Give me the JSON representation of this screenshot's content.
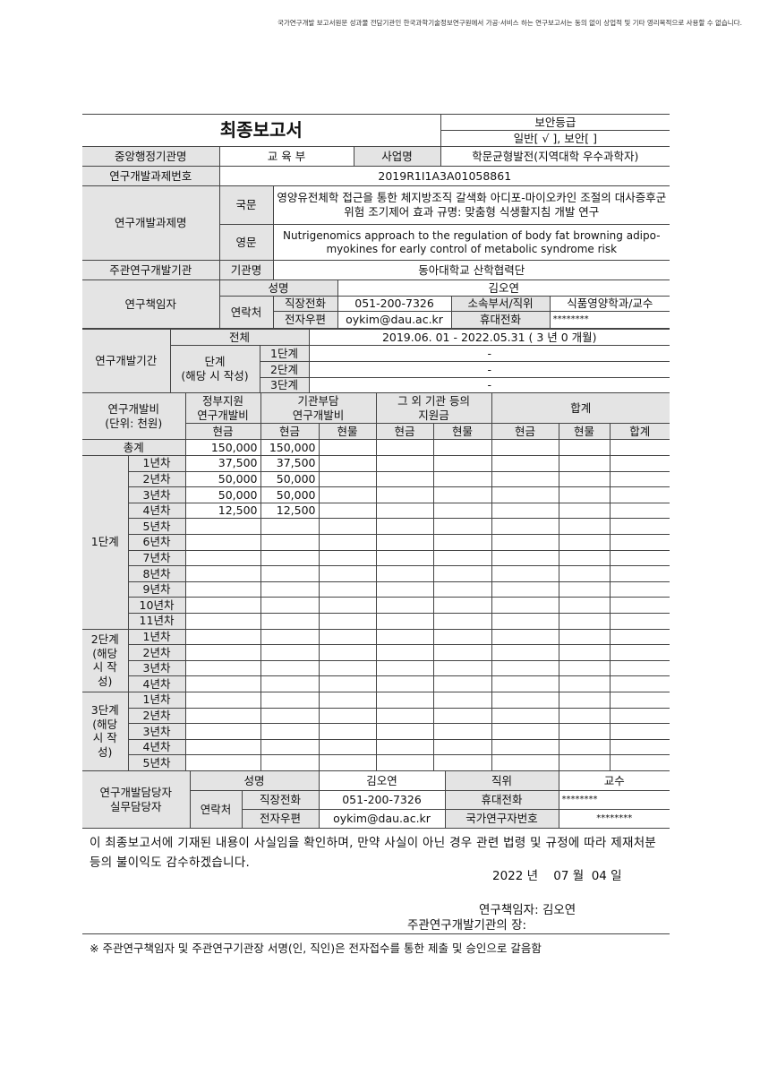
{
  "notice": "국가연구개발 보고서원문 성과물 전담기관인 한국과학기술정보연구원에서 가공·서비스 하는 연구보고서는 동의 없이 상업적 및 기타 영리목적으로 사용할 수 없습니다.",
  "title": "최종보고서",
  "security": {
    "label": "보안등급",
    "value": "일반[ √ ], 보안[    ]"
  },
  "agency": {
    "label": "중앙행정기관명",
    "value": "교 육 부"
  },
  "program": {
    "label": "사업명",
    "value": "학문균형발전(지역대학 우수과학자)"
  },
  "project_no": {
    "label": "연구개발과제번호",
    "value": "2019R1I1A3A01058861"
  },
  "project_title": {
    "label": "연구개발과제명",
    "ko_label": "국문",
    "ko": "영양유전체학 접근을 통한 체지방조직 갈색화 아디포-마이오카인 조절의 대사증후군 위험 조기제어 효과 규명: 맞춤형 식생활지침 개발 연구",
    "en_label": "영문",
    "en": "Nutrigenomics approach to the regulation of body fat browning adipo-myokines  for early control of metabolic syndrome risk"
  },
  "lead_org": {
    "label": "주관연구개발기관",
    "name_label": "기관명",
    "value": "동아대학교 산학협력단"
  },
  "pi": {
    "label": "연구책임자",
    "name_label": "성명",
    "name": "김오연",
    "contact_label": "연락처",
    "work_phone_label": "직장전화",
    "work_phone": "051-200-7326",
    "dept_label": "소속부서/직위",
    "dept": "식품영양학과/교수",
    "email_label": "전자우편",
    "email": "oykim@dau.ac.kr",
    "mobile_label": "휴대전화",
    "mobile": "********"
  },
  "period": {
    "label": "연구개발기간",
    "total_label": "전체",
    "total": "2019.06. 01 - 2022.05.31 ( 3 년  0 개월)",
    "stage_label": "단계",
    "stage_sub": "(해당 시 작성)",
    "stages": [
      {
        "label": "1단계",
        "value": "-"
      },
      {
        "label": "2단계",
        "value": "-"
      },
      {
        "label": "3단계",
        "value": "-"
      }
    ]
  },
  "funding": {
    "label": "연구개발비",
    "unit": "(단위: 천원)",
    "gov": "정부지원\n연구개발비",
    "org": "기관부담\n연구개발비",
    "other": "그 외 기관 등의\n지원금",
    "sum": "합계",
    "cash": "현금",
    "inkind": "현물",
    "total_col": "합계",
    "total_row": {
      "label": "총계",
      "gov_cash": "150,000",
      "org_cash": "150,000"
    },
    "stages": [
      {
        "label": "1단계",
        "years": [
          {
            "label": "1년차",
            "gov_cash": "37,500",
            "org_cash": "37,500"
          },
          {
            "label": "2년차",
            "gov_cash": "50,000",
            "org_cash": "50,000"
          },
          {
            "label": "3년차",
            "gov_cash": "50,000",
            "org_cash": "50,000"
          },
          {
            "label": "4년차",
            "gov_cash": "12,500",
            "org_cash": "12,500"
          },
          {
            "label": "5년차"
          },
          {
            "label": "6년차"
          },
          {
            "label": "7년차"
          },
          {
            "label": "8년차"
          },
          {
            "label": "9년차"
          },
          {
            "label": "10년차"
          },
          {
            "label": "11년차"
          }
        ]
      },
      {
        "label": "2단계\n(해당\n시 작\n성)",
        "years": [
          {
            "label": "1년차"
          },
          {
            "label": "2년차"
          },
          {
            "label": "3년차"
          },
          {
            "label": "4년차"
          }
        ]
      },
      {
        "label": "3단계\n(해당\n시 작\n성)",
        "years": [
          {
            "label": "1년차"
          },
          {
            "label": "2년차"
          },
          {
            "label": "3년차"
          },
          {
            "label": "4년차"
          },
          {
            "label": "5년차"
          }
        ]
      }
    ]
  },
  "staff": {
    "label": "연구개발담당자\n실무담당자",
    "name_label": "성명",
    "name": "김오연",
    "position_label": "직위",
    "position": "교수",
    "contact_label": "연락처",
    "work_phone_label": "직장전화",
    "work_phone": "051-200-7326",
    "mobile_label": "휴대전화",
    "mobile": "********",
    "email_label": "전자우편",
    "email": "oykim@dau.ac.kr",
    "researcher_no_label": "국가연구자번호",
    "researcher_no": "********"
  },
  "statement": "이 최종보고서에 기재된 내용이 사실임을 확인하며, 만약 사실이 아닌 경우 관련 법령 및 규정에 따라 제재처분 등의 불이익도 감수하겠습니다.",
  "date": "2022 년    07 월  04 일",
  "signer_label": "연구책임자:",
  "signer": "김오연",
  "head_label": "주관연구개발기관의 장:",
  "footnote": "※ 주관연구책임자 및 주관연구기관장 서명(인, 직인)은 전자접수를 통한 제출 및 승인으로 갈음함"
}
